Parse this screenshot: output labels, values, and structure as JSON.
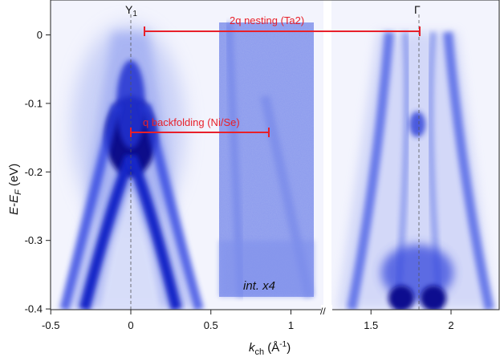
{
  "figure": {
    "xlabel_var": "k",
    "xlabel_sub": "ch",
    "xlabel_unit_open": " (Å",
    "xlabel_unit_sup": "-1",
    "xlabel_unit_close": ")",
    "ylabel_main": "E-E",
    "ylabel_sub": "F",
    "ylabel_unit": " (eV)",
    "point_y1_main": "Y",
    "point_y1_sub": "1",
    "point_gamma": "Γ",
    "inset_label": "int. x4",
    "axis_break_mark": "//",
    "colormap": {
      "low": "#ffffff",
      "high": "#0a0aa0",
      "mid": "#2a3fe0"
    }
  },
  "chart_data": {
    "type": "heatmap",
    "title": "",
    "xlabel": "k_ch (Å^-1)",
    "ylabel": "E-E_F (eV)",
    "xlim": [
      -0.5,
      2.3
    ],
    "ylim": [
      -0.42,
      0.04
    ],
    "x_ticks": [
      {
        "value": -0.5,
        "label": "-0.5"
      },
      {
        "value": 0,
        "label": "0"
      },
      {
        "value": 0.5,
        "label": "0.5"
      },
      {
        "value": 1,
        "label": "1"
      },
      {
        "value": 1.5,
        "label": "1.5"
      },
      {
        "value": 2,
        "label": "2"
      }
    ],
    "y_ticks": [
      {
        "value": 0,
        "label": "0"
      },
      {
        "value": -0.1,
        "label": "-0.1"
      },
      {
        "value": -0.2,
        "label": "-0.2"
      },
      {
        "value": -0.3,
        "label": "-0.3"
      },
      {
        "value": -0.4,
        "label": "-0.4"
      }
    ],
    "axis_break_x": [
      1.2,
      1.25
    ],
    "high_symmetry_points": [
      {
        "name": "Y1",
        "k": 0
      },
      {
        "name": "Γ",
        "k": 1.8
      }
    ],
    "inset_region": {
      "k_range": [
        0.55,
        1.15
      ],
      "E_range": [
        -0.4,
        0.02
      ],
      "label": "int. x4"
    },
    "annotations": [
      {
        "text": "2q  nesting (Ta2)",
        "k_start": 0.08,
        "k_end": 1.82,
        "E": 0.007,
        "color": "#e8202a"
      },
      {
        "text": "q  backfolding (Ni/Se)",
        "k_start": 0.0,
        "k_end": 0.87,
        "E": -0.148,
        "color": "#e8202a"
      }
    ],
    "bands": [
      {
        "name": "hole band at Y1",
        "k_center": 0.0,
        "E_top": -0.14,
        "E_min": -0.42
      },
      {
        "name": "outer bands at Γ",
        "k_left_at_EF": 1.6,
        "k_right_at_EF": 2.0,
        "E_min": -0.42
      }
    ]
  }
}
